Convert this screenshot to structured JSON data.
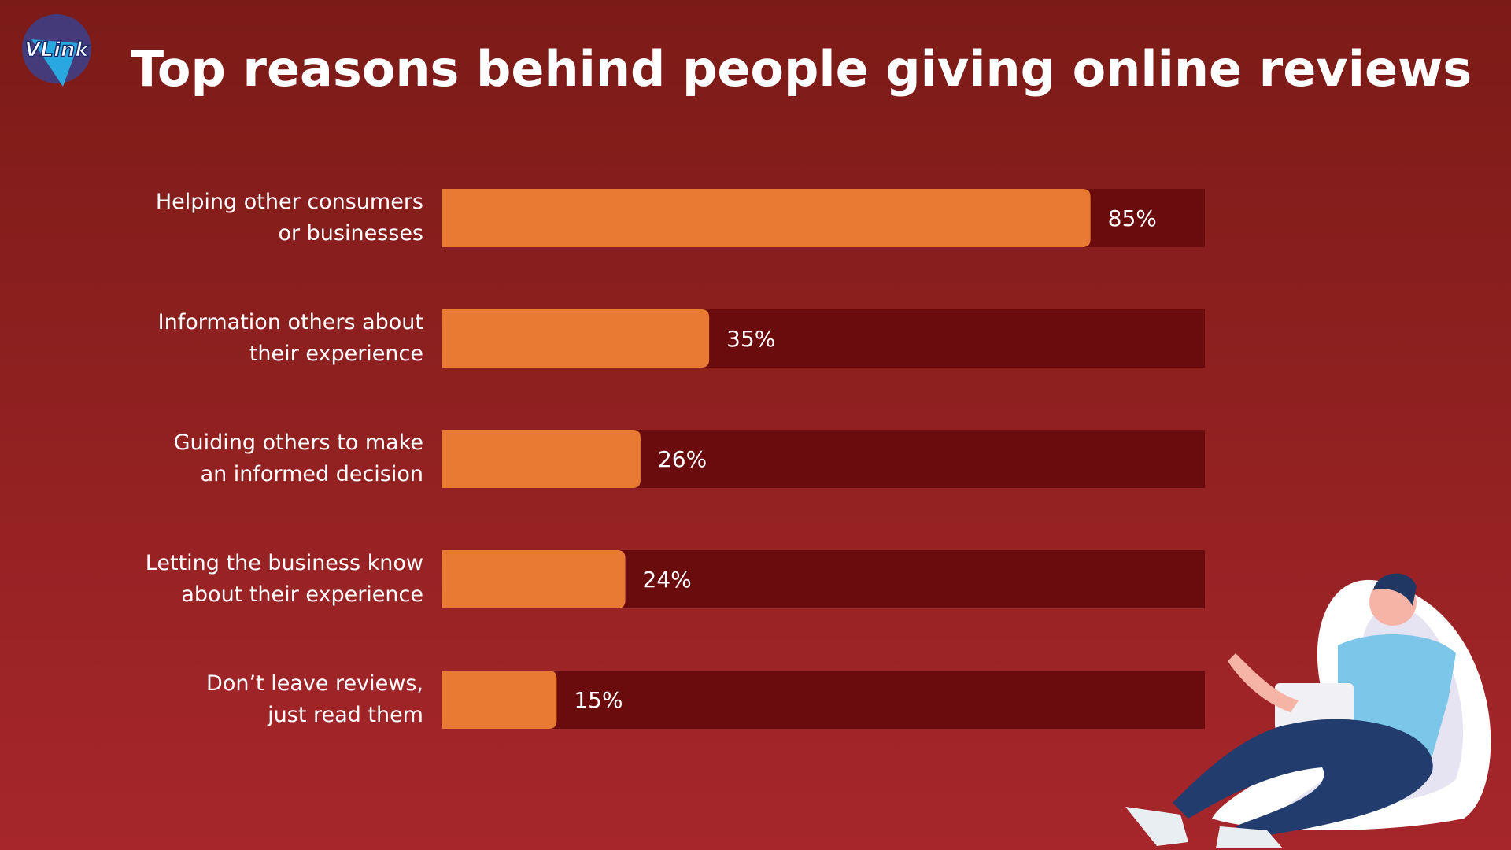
{
  "logo": "VLink",
  "chart_data": {
    "type": "bar",
    "orientation": "horizontal",
    "title": "Top reasons behind people giving online reviews",
    "categories": [
      "Helping other consumers\nor businesses",
      "Information others about\ntheir experience",
      "Guiding others to make\nan informed decision",
      "Letting the business know\nabout their experience",
      "Don’t leave reviews,\njust read them"
    ],
    "values": [
      85,
      35,
      26,
      24,
      15
    ],
    "value_labels": [
      "85%",
      "35%",
      "26%",
      "24%",
      "15%"
    ],
    "color": "#e87a33"
  }
}
